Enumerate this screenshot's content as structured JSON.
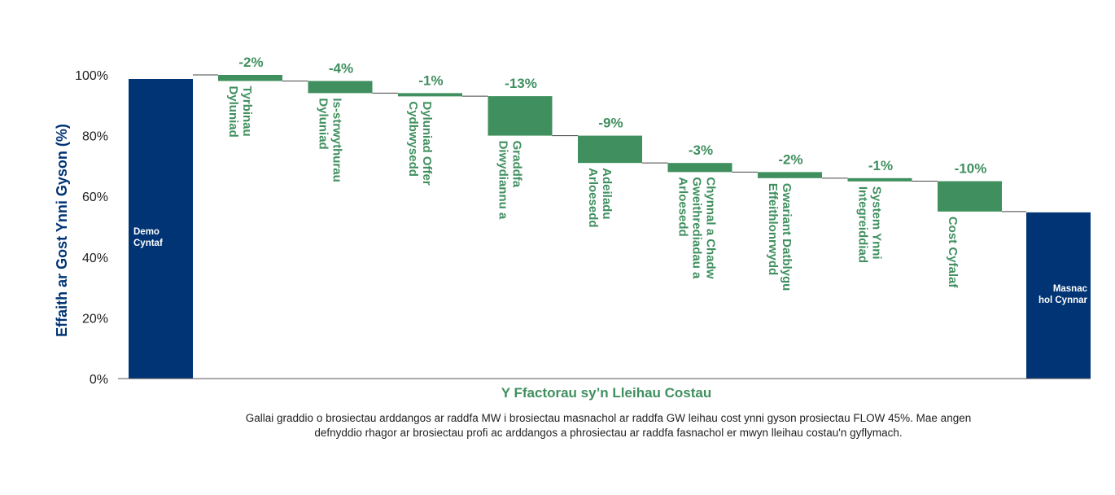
{
  "chart_data": {
    "type": "waterfall",
    "ylabel": "Effaith ar Gost Ynni Gyson (%)",
    "xlabel": "Y Ffactorau sy’n Lleihau Costau",
    "yticks": [
      "0%",
      "20%",
      "40%",
      "60%",
      "80%",
      "100%"
    ],
    "ylim": [
      0,
      100
    ],
    "start": {
      "label": "Demo Cyntaf",
      "value": 100
    },
    "steps": [
      {
        "label": "Dyluniad Tyrbinau",
        "value": -2,
        "value_label": "-2%"
      },
      {
        "label": "Dyluniad Is-strwythurau",
        "value": -4,
        "value_label": "-4%"
      },
      {
        "label": "Cydbwysedd Dyluniad Offer",
        "value": -1,
        "value_label": "-1%"
      },
      {
        "label": "Diwydiannu a Graddfa",
        "value": -13,
        "value_label": "-13%"
      },
      {
        "label": "Arloesedd Adeiladu",
        "value": -9,
        "value_label": "-9%"
      },
      {
        "label": "Arloesedd Gweithrediadau a Chynnal a Chadw",
        "value": -3,
        "value_label": "-3%"
      },
      {
        "label": "Effeithlonrwydd Gwariant Datblygu",
        "value": -2,
        "value_label": "-2%"
      },
      {
        "label": "Integreiddiad System Ynni",
        "value": -1,
        "value_label": "-1%"
      },
      {
        "label": "Cost Cyfalaf",
        "value": -10,
        "value_label": "-10%"
      }
    ],
    "end": {
      "label": "Masnachol Cynnar",
      "value": 55
    },
    "colors": {
      "total": "#003474",
      "step": "#3f8f5f",
      "axis": "#555555",
      "connector": "#444444"
    }
  },
  "caption": "Gallai graddio o brosiectau arddangos ar raddfa MW i brosiectau masnachol ar raddfa GW leihau cost ynni gyson prosiectau FLOW 45%. Mae angen defnyddio rhagor ar brosiectau profi ac arddangos a phrosiectau ar raddfa fasnachol er mwyn lleihau costau'n gyflymach."
}
